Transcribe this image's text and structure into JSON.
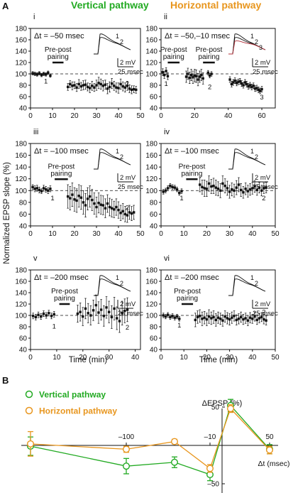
{
  "figure": {
    "panel_letter_a": "A",
    "panel_letter_b": "B",
    "column_headers": [
      "Vertical pathway",
      "Horizontal pathway"
    ],
    "colors": {
      "vertical": "#22aa22",
      "horizontal": "#e8961e",
      "ink": "#111111"
    },
    "ylabel": "Normalized EPSP slope (%)",
    "xlabel": "Time (min)",
    "prepost_label": [
      "Pre-post",
      "pairing"
    ],
    "scale_bar_labels": [
      "2 mV",
      "25 msec"
    ]
  },
  "chart_data": [
    {
      "type": "scatter",
      "panel": "i",
      "dt_label": "Δt = –50 msec",
      "xticks": [
        0,
        10,
        20,
        30,
        40,
        50
      ],
      "yticks": [
        40,
        60,
        80,
        100,
        120,
        140,
        160,
        180
      ],
      "xlim": [
        0,
        50
      ],
      "ylim": [
        40,
        180
      ],
      "baseline": 100,
      "pairing": [
        10,
        15
      ],
      "marker_labels": [
        {
          "text": "1",
          "x": 7,
          "y": 88
        },
        {
          "text": "2",
          "x": 44,
          "y": 84
        }
      ],
      "trace_labels": [
        "1",
        "2"
      ],
      "series": [
        {
          "name": "baseline",
          "x": [
            1,
            2,
            3,
            4,
            5,
            6,
            7,
            8,
            9
          ],
          "y": [
            101,
            100,
            99,
            101,
            98,
            100,
            99,
            102,
            97
          ],
          "err": [
            3,
            3,
            3,
            3,
            3,
            3,
            3,
            3,
            3
          ]
        },
        {
          "name": "post",
          "x": [
            17,
            18,
            19,
            20,
            21,
            22,
            23,
            24,
            25,
            26,
            27,
            28,
            29,
            30,
            31,
            32,
            33,
            34,
            35,
            36,
            37,
            38,
            39,
            40,
            41,
            42,
            43,
            44,
            45,
            46,
            47,
            48
          ],
          "y": [
            77,
            82,
            79,
            80,
            76,
            82,
            78,
            80,
            81,
            77,
            75,
            79,
            76,
            80,
            84,
            82,
            79,
            81,
            74,
            77,
            83,
            79,
            76,
            75,
            82,
            78,
            76,
            79,
            74,
            72,
            73,
            72
          ],
          "err": [
            6,
            6,
            7,
            6,
            7,
            8,
            7,
            8,
            8,
            7,
            8,
            8,
            7,
            9,
            10,
            9,
            9,
            8,
            9,
            9,
            9,
            8,
            8,
            9,
            9,
            8,
            8,
            8,
            7,
            7,
            6,
            6
          ]
        }
      ]
    },
    {
      "type": "scatter",
      "panel": "ii",
      "dt_label": "Δt = –50,–10 msec",
      "xticks": [
        0,
        20,
        40,
        60
      ],
      "yticks": [
        40,
        60,
        80,
        100,
        120,
        140,
        160,
        180
      ],
      "xlim": [
        0,
        68
      ],
      "ylim": [
        40,
        180
      ],
      "baseline": 100,
      "pairing": [
        4,
        11
      ],
      "pairing2": [
        25,
        32
      ],
      "marker_labels": [
        {
          "text": "1",
          "x": 3,
          "y": 84
        },
        {
          "text": "2",
          "x": 29,
          "y": 78
        },
        {
          "text": "3",
          "x": 60,
          "y": 60
        }
      ],
      "trace_labels": [
        "1",
        "2",
        "3"
      ],
      "series": [
        {
          "name": "baseline",
          "x": [
            1,
            2,
            3,
            4
          ],
          "y": [
            103,
            98,
            105,
            96
          ],
          "err": [
            6,
            6,
            6,
            6
          ]
        },
        {
          "name": "mid",
          "x": [
            15,
            16,
            17,
            18,
            19,
            20,
            21,
            22,
            23,
            24,
            25
          ],
          "y": [
            95,
            100,
            93,
            98,
            94,
            97,
            96,
            90,
            95,
            98,
            92
          ],
          "err": [
            10,
            10,
            10,
            10,
            11,
            11,
            11,
            11,
            10,
            10,
            10
          ]
        },
        {
          "name": "early-post",
          "x": [
            28,
            29,
            30
          ],
          "y": [
            102,
            97,
            100
          ],
          "err": [
            4,
            4,
            4
          ]
        },
        {
          "name": "post",
          "x": [
            41,
            42,
            43,
            44,
            45,
            46,
            47,
            48,
            49,
            50,
            51,
            52,
            53,
            54,
            55,
            56,
            57,
            58,
            59,
            60
          ],
          "y": [
            90,
            82,
            85,
            88,
            84,
            86,
            87,
            83,
            80,
            85,
            82,
            78,
            80,
            77,
            79,
            74,
            75,
            72,
            70,
            73
          ],
          "err": [
            5,
            5,
            5,
            5,
            5,
            5,
            5,
            5,
            5,
            5,
            5,
            5,
            5,
            5,
            5,
            5,
            5,
            5,
            5,
            5
          ]
        }
      ]
    },
    {
      "type": "scatter",
      "panel": "iii",
      "dt_label": "Δt = –100 msec",
      "xticks": [
        0,
        10,
        20,
        30,
        40,
        50
      ],
      "yticks": [
        40,
        60,
        80,
        100,
        120,
        140,
        160,
        180
      ],
      "xlim": [
        0,
        50
      ],
      "ylim": [
        40,
        180
      ],
      "baseline": 100,
      "pairing": [
        11,
        17
      ],
      "marker_labels": [
        {
          "text": "1",
          "x": 10,
          "y": 88
        },
        {
          "text": "2",
          "x": 44,
          "y": 72
        }
      ],
      "trace_labels": [
        "1",
        "2"
      ],
      "series": [
        {
          "name": "baseline",
          "x": [
            1,
            2,
            3,
            4,
            5,
            6,
            7,
            8,
            9
          ],
          "y": [
            106,
            103,
            104,
            101,
            99,
            104,
            102,
            100,
            103
          ],
          "err": [
            4,
            5,
            5,
            5,
            4,
            5,
            5,
            5,
            5
          ]
        },
        {
          "name": "post",
          "x": [
            17,
            18,
            19,
            20,
            21,
            22,
            23,
            24,
            25,
            26,
            27,
            28,
            29,
            30,
            31,
            32,
            33,
            34,
            35,
            36,
            37,
            38,
            39,
            40,
            41,
            42,
            43,
            44,
            45,
            46,
            47
          ],
          "y": [
            90,
            87,
            93,
            85,
            83,
            91,
            88,
            80,
            75,
            86,
            90,
            84,
            78,
            72,
            79,
            76,
            75,
            70,
            78,
            72,
            70,
            68,
            72,
            67,
            62,
            65,
            60,
            58,
            63,
            61,
            63
          ],
          "err": [
            20,
            20,
            20,
            20,
            20,
            19,
            20,
            20,
            20,
            19,
            18,
            18,
            18,
            17,
            17,
            16,
            16,
            16,
            15,
            15,
            15,
            14,
            14,
            14,
            13,
            13,
            13,
            12,
            12,
            12,
            12
          ]
        }
      ]
    },
    {
      "type": "scatter",
      "panel": "iv",
      "dt_label": "Δt = –100 msec",
      "xticks": [
        0,
        10,
        20,
        30,
        40,
        50
      ],
      "yticks": [
        40,
        60,
        80,
        100,
        120,
        140,
        160,
        180
      ],
      "xlim": [
        0,
        50
      ],
      "ylim": [
        40,
        180
      ],
      "baseline": 100,
      "pairing": [
        11,
        16
      ],
      "marker_labels": [
        {
          "text": "1",
          "x": 9,
          "y": 88
        },
        {
          "text": "2",
          "x": 45,
          "y": 88
        }
      ],
      "trace_labels": [
        "1",
        "2"
      ],
      "series": [
        {
          "name": "baseline",
          "x": [
            1,
            2,
            3,
            4,
            5,
            6,
            7,
            8,
            9
          ],
          "y": [
            98,
            100,
            104,
            108,
            106,
            105,
            102,
            96,
            99
          ],
          "err": [
            4,
            4,
            4,
            4,
            4,
            4,
            4,
            4,
            4
          ]
        },
        {
          "name": "post",
          "x": [
            17,
            18,
            19,
            20,
            21,
            22,
            23,
            24,
            25,
            26,
            27,
            28,
            29,
            30,
            31,
            32,
            33,
            34,
            35,
            36,
            37,
            38,
            39,
            40,
            41,
            42,
            43,
            44,
            45,
            46
          ],
          "y": [
            110,
            106,
            104,
            103,
            112,
            107,
            108,
            105,
            103,
            100,
            112,
            108,
            104,
            98,
            102,
            100,
            105,
            110,
            101,
            97,
            103,
            99,
            102,
            104,
            107,
            101,
            105,
            100,
            104,
            105
          ],
          "err": [
            12,
            12,
            14,
            13,
            13,
            12,
            13,
            13,
            12,
            12,
            13,
            12,
            12,
            11,
            11,
            11,
            12,
            12,
            11,
            10,
            10,
            10,
            10,
            10,
            10,
            9,
            9,
            9,
            9,
            9
          ]
        }
      ]
    },
    {
      "type": "scatter",
      "panel": "v",
      "dt_label": "Δt = –200 msec",
      "xticks": [
        0,
        10,
        20,
        30,
        40
      ],
      "yticks": [
        40,
        60,
        80,
        100,
        120,
        140,
        160,
        180
      ],
      "xlim": [
        0,
        42
      ],
      "ylim": [
        40,
        180
      ],
      "baseline": 100,
      "pairing": [
        11,
        15
      ],
      "marker_labels": [
        {
          "text": "1",
          "x": 9,
          "y": 82
        },
        {
          "text": "2",
          "x": 37,
          "y": 80
        }
      ],
      "trace_labels": [
        "1",
        "2"
      ],
      "series": [
        {
          "name": "baseline",
          "x": [
            1,
            2,
            3,
            4,
            5,
            6,
            7,
            8,
            9
          ],
          "y": [
            99,
            97,
            101,
            98,
            103,
            100,
            104,
            99,
            102
          ],
          "err": [
            5,
            5,
            5,
            5,
            5,
            5,
            5,
            5,
            5
          ]
        },
        {
          "name": "post",
          "x": [
            18,
            19,
            20,
            21,
            22,
            23,
            24,
            25,
            26,
            27,
            28,
            29,
            30,
            31,
            32,
            33,
            34,
            35,
            36,
            37
          ],
          "y": [
            103,
            106,
            98,
            112,
            104,
            100,
            109,
            118,
            105,
            110,
            99,
            114,
            106,
            97,
            112,
            95,
            90,
            104,
            108,
            110
          ],
          "err": [
            15,
            16,
            16,
            18,
            17,
            17,
            18,
            18,
            19,
            18,
            18,
            19,
            19,
            20,
            20,
            20,
            20,
            21,
            21,
            21
          ]
        }
      ]
    },
    {
      "type": "scatter",
      "panel": "vi",
      "dt_label": "Δt = –200 msec",
      "xticks": [
        0,
        10,
        20,
        30,
        40,
        50
      ],
      "yticks": [
        40,
        60,
        80,
        100,
        120,
        140,
        160,
        180
      ],
      "xlim": [
        0,
        50
      ],
      "ylim": [
        40,
        180
      ],
      "baseline": 100,
      "pairing": [
        9,
        14
      ],
      "marker_labels": [
        {
          "text": "1",
          "x": 8,
          "y": 84
        },
        {
          "text": "2",
          "x": 45,
          "y": 107
        }
      ],
      "trace_labels": [
        "1",
        "2"
      ],
      "series": [
        {
          "name": "baseline",
          "x": [
            1,
            2,
            3,
            4,
            5,
            6,
            7,
            8
          ],
          "y": [
            100,
            98,
            101,
            97,
            99,
            96,
            98,
            94
          ],
          "err": [
            4,
            4,
            4,
            4,
            4,
            4,
            4,
            4
          ]
        },
        {
          "name": "post",
          "x": [
            15,
            16,
            17,
            18,
            19,
            20,
            21,
            22,
            23,
            24,
            25,
            26,
            27,
            28,
            29,
            30,
            31,
            32,
            33,
            34,
            35,
            36,
            37,
            38,
            39,
            40,
            41,
            42,
            43,
            44,
            45,
            46
          ],
          "y": [
            92,
            97,
            99,
            94,
            96,
            93,
            98,
            95,
            97,
            92,
            96,
            94,
            91,
            98,
            95,
            93,
            96,
            99,
            92,
            94,
            97,
            93,
            95,
            91,
            96,
            94,
            98,
            92,
            95,
            97,
            93,
            91
          ],
          "err": [
            12,
            11,
            11,
            12,
            11,
            11,
            12,
            11,
            11,
            11,
            10,
            10,
            10,
            10,
            10,
            10,
            10,
            9,
            9,
            9,
            9,
            9,
            9,
            9,
            9,
            8,
            8,
            8,
            8,
            8,
            8,
            8
          ]
        }
      ]
    },
    {
      "type": "line",
      "panel": "B",
      "xlabel": "Δt (msec)",
      "ylabel": "ΔEPSP (%)",
      "xticks": [
        -100,
        -10,
        50
      ],
      "yticks": [
        50,
        0,
        -50
      ],
      "xtick_labels": [
        "–100",
        "–10",
        "50"
      ],
      "ytick_labels": [
        "50",
        "0",
        "–50"
      ],
      "legend_position": "top-left",
      "series": [
        {
          "name": "Vertical pathway",
          "x": [
            -200,
            -100,
            -50,
            -10,
            10,
            50
          ],
          "y": [
            -1,
            -27,
            -22,
            -38,
            52,
            -5
          ],
          "err": [
            12,
            10,
            7,
            8,
            8,
            6
          ]
        },
        {
          "name": "Horizontal pathway",
          "x": [
            -200,
            -100,
            -50,
            -10,
            10,
            50
          ],
          "y": [
            2,
            -5,
            5,
            -30,
            48,
            -6
          ],
          "err": [
            16,
            4,
            3,
            5,
            5,
            5
          ]
        }
      ]
    }
  ]
}
